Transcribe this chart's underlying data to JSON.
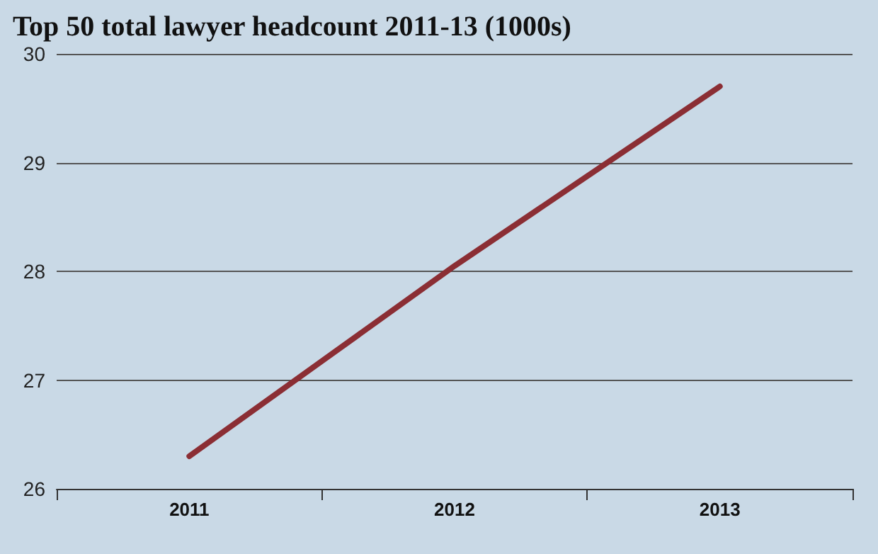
{
  "chart_data": {
    "type": "line",
    "title": "Top 50 total lawyer headcount 2011-13 (1000s)",
    "categories": [
      "2011",
      "2012",
      "2013"
    ],
    "series": [
      {
        "color": "#8b2e34",
        "values": [
          26.3,
          28.05,
          29.7
        ]
      }
    ],
    "ylim": [
      26,
      30
    ],
    "yticks": [
      26,
      27,
      28,
      29,
      30
    ],
    "grid": "y",
    "marker": "none",
    "line_style": "solid"
  }
}
